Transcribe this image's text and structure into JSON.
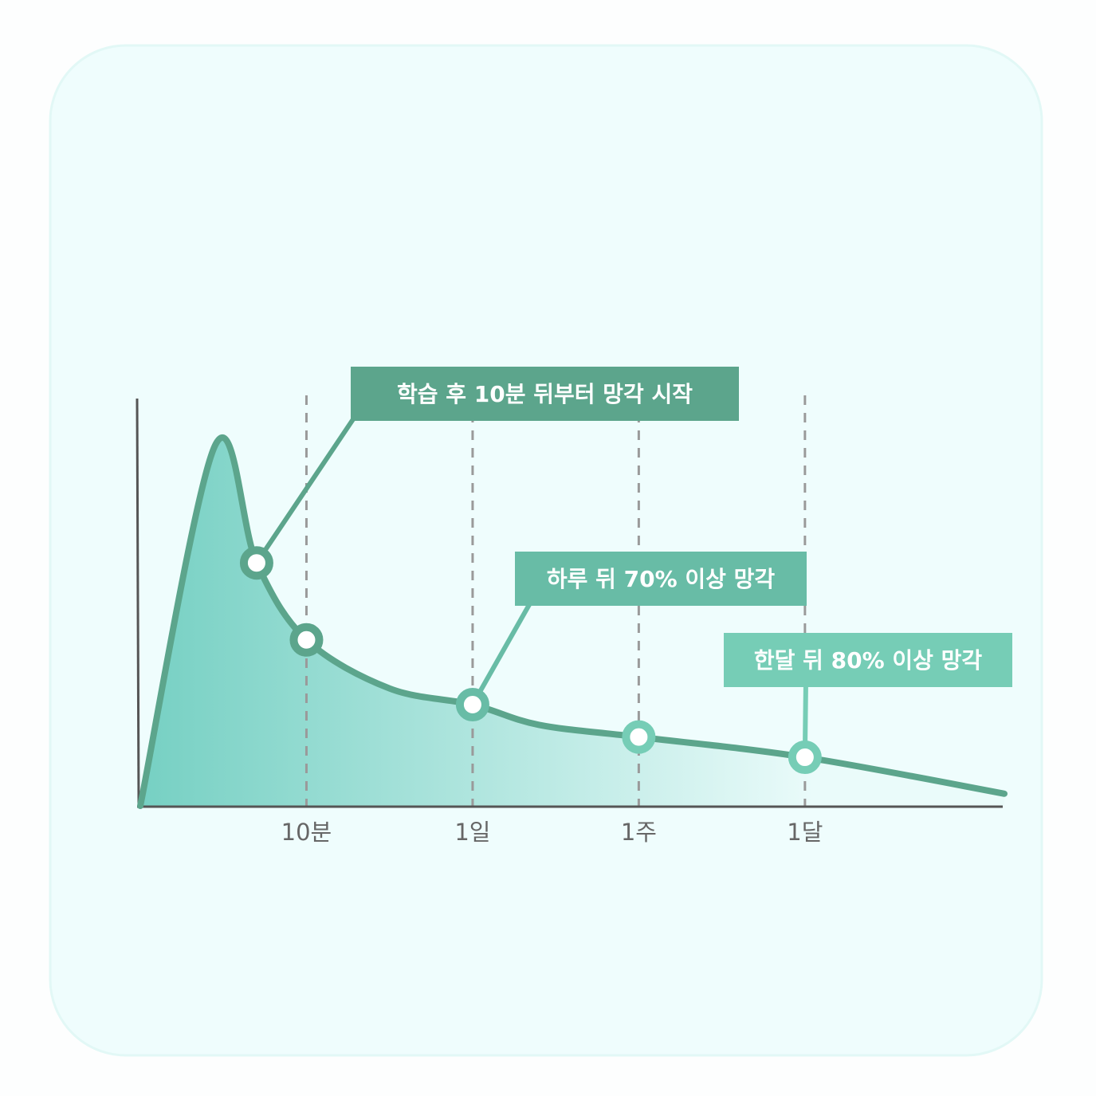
{
  "colors": {
    "panel": "#effdfd",
    "panel_border": "#e2f8f6",
    "curve": "#5ca58c",
    "label_dark": "#5ca58c",
    "label_mid": "#68bca6",
    "label_light": "#76cdb6",
    "fill_left": "#76d0c3",
    "fill_right": "#eafbfa",
    "tick_text": "#666666",
    "guide": "#9a9a9a",
    "axis": "#555555"
  },
  "chart_data": {
    "type": "area",
    "title": "",
    "xlabel": "",
    "ylabel": "",
    "grid": false,
    "legend": "none",
    "ticks": [
      {
        "label": "10분",
        "x": 1
      },
      {
        "label": "1일",
        "x": 2
      },
      {
        "label": "1주",
        "x": 3
      },
      {
        "label": "1달",
        "x": 4
      }
    ],
    "curve": [
      {
        "x": 0.0,
        "y": 0
      },
      {
        "x": 0.45,
        "y": 89
      },
      {
        "x": 0.7,
        "y": 60
      },
      {
        "x": 1.0,
        "y": 41
      },
      {
        "x": 1.5,
        "y": 29
      },
      {
        "x": 2.0,
        "y": 25
      },
      {
        "x": 2.4,
        "y": 20
      },
      {
        "x": 3.0,
        "y": 17
      },
      {
        "x": 4.0,
        "y": 12
      },
      {
        "x": 5.2,
        "y": 3
      }
    ],
    "xlim": [
      0,
      5.2
    ],
    "ylim": [
      0,
      100
    ],
    "markers": [
      {
        "x": 0.7,
        "y": 60
      },
      {
        "x": 1.0,
        "y": 41
      },
      {
        "x": 2.0,
        "y": 25
      },
      {
        "x": 3.0,
        "y": 17
      },
      {
        "x": 4.0,
        "y": 12
      }
    ],
    "annotations": [
      {
        "text": "학습 후 10분 뒤부터 망각 시작",
        "marker": 0,
        "style": "dark"
      },
      {
        "text": "하루 뒤 70% 이상 망각",
        "marker": 2,
        "style": "mid"
      },
      {
        "text": "한달 뒤 80% 이상 망각",
        "marker": 4,
        "style": "light"
      }
    ]
  }
}
